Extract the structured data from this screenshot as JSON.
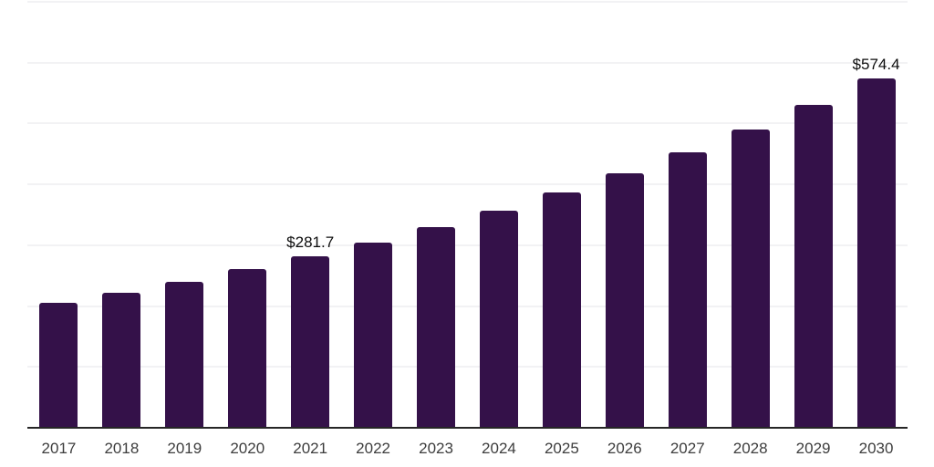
{
  "chart_data": {
    "type": "bar",
    "title": "",
    "xlabel": "",
    "ylabel": "",
    "categories": [
      "2017",
      "2018",
      "2019",
      "2020",
      "2021",
      "2022",
      "2023",
      "2024",
      "2025",
      "2026",
      "2027",
      "2028",
      "2029",
      "2030"
    ],
    "values": [
      205.3,
      222.2,
      240.5,
      260.3,
      281.7,
      304.9,
      330.0,
      357.2,
      386.7,
      418.5,
      453.0,
      490.3,
      530.7,
      574.4
    ],
    "labeled_values_note": "only 2021 and 2030 bars show data labels; other values estimated from gridlines",
    "data_labels": {
      "2021": "$281.7",
      "2030": "$574.4"
    },
    "ylim": [
      0,
      700
    ],
    "gridline_step": 100,
    "grid": "horizontal",
    "y_tick_labels_visible": false,
    "legend_position": "none",
    "colors": {
      "bar": "#341149",
      "axis_line": "#262626",
      "gridline": "#f2f2f4",
      "tick_label": "#3d3d3d",
      "value_label": "#0d0d0d",
      "background": "#ffffff"
    }
  }
}
